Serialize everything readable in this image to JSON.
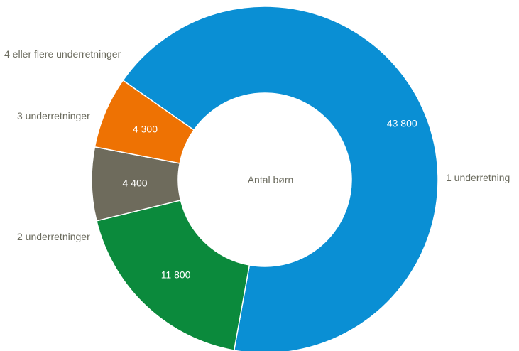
{
  "chart_data": {
    "type": "pie",
    "center_label": "Antal børn",
    "slices": [
      {
        "category": "1 underretning",
        "value": 43800,
        "value_label": "43 800",
        "color": "#0a8fd4"
      },
      {
        "category": "2 underretninger",
        "value": 11800,
        "value_label": "11 800",
        "color": "#0b8a3c"
      },
      {
        "category": "3 underretninger",
        "value": 4400,
        "value_label": "4 400",
        "color": "#6e6b5c"
      },
      {
        "category": "4 eller flere underretninger",
        "value": 4300,
        "value_label": "4 300",
        "color": "#ee7203"
      }
    ]
  }
}
